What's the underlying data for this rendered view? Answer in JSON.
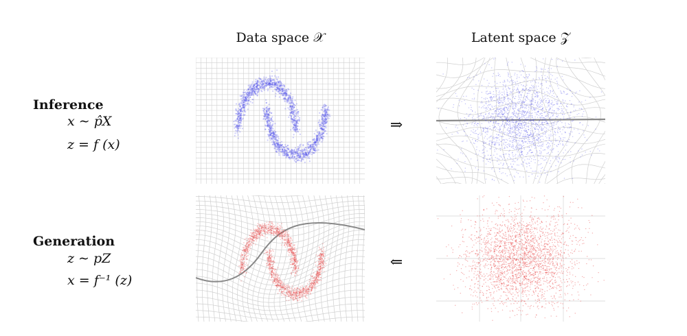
{
  "columns": {
    "data_space": "Data space 𝒳",
    "latent_space": "Latent space 𝒵"
  },
  "rows": {
    "inference": {
      "title": "Inference",
      "formula1": "x ∼ p̂X",
      "formula2": "z = f (x)"
    },
    "generation": {
      "title": "Generation",
      "formula1": "z ∼ pZ",
      "formula2": "x = f⁻¹ (z)"
    }
  },
  "arrows": {
    "forward": "⇒",
    "backward": "⇐"
  },
  "colors": {
    "inference_points": "#4a4ae8",
    "generation_points": "#e84a4a",
    "grid": "#cfcfcf",
    "grid_highlight": "#888888"
  }
}
